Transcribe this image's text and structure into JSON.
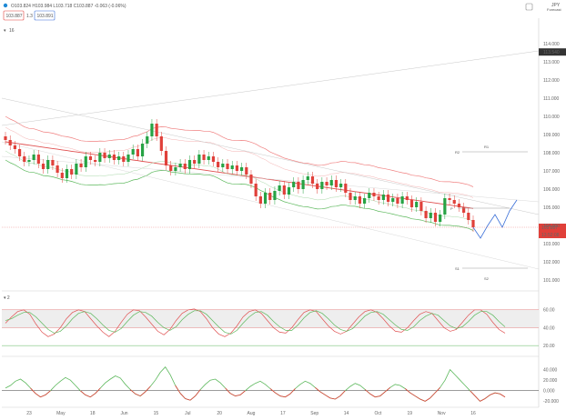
{
  "header": {
    "ohlc": "O103.824 H103.984 L103.718 C103.887 -0.063 (-0.06%)",
    "bid": "103.887",
    "spread": "1.3",
    "ask": "103.891",
    "period": "16",
    "symbol": "JPY",
    "symbol_sub": "Forecast"
  },
  "colors": {
    "bull": "#26a344",
    "bear": "#e0403a",
    "upper_band": "#f08080",
    "lower_band": "#5cb85c",
    "ma": "#e05050",
    "forecast": "#3a6fd8",
    "stoch_k": "#e05050",
    "stoch_d": "#5cb85c",
    "osc": "#5cb85c"
  },
  "chart_data": [
    {
      "type": "candlestick",
      "panel": "price",
      "ylim": [
        100.5,
        115
      ],
      "y_ticks": [
        "114.000",
        "113.000",
        "112.000",
        "111.000",
        "110.000",
        "109.000",
        "108.000",
        "107.000",
        "106.000",
        "105.000",
        "104.000",
        "103.000",
        "102.000",
        "101.000"
      ],
      "x_ticks": [
        "23",
        "May",
        "18",
        "Jun",
        "15",
        "Jul",
        "20",
        "Aug",
        "17",
        "Sep",
        "14",
        "Oct",
        "19",
        "Nov",
        "16"
      ],
      "last_price_label": "103.887",
      "countdown_label": "13:52:08",
      "top_price_label": "113.540",
      "pivot_labels": [
        "R2",
        "R1",
        "P",
        "S1",
        "S2"
      ],
      "pivots": {
        "R2": 108.05,
        "R1": 108.35,
        "P": 104.95,
        "S1": 101.65,
        "S2": 101.1
      },
      "candles_close": [
        108.7,
        108.4,
        108.2,
        107.8,
        107.5,
        107.6,
        107.9,
        107.4,
        107.1,
        107.6,
        107.3,
        106.9,
        106.6,
        107.1,
        106.8,
        107.4,
        107.2,
        107.8,
        107.6,
        107.5,
        108.0,
        107.7,
        107.9,
        107.6,
        107.8,
        107.5,
        107.9,
        108.2,
        107.8,
        108.5,
        108.9,
        109.6,
        108.9,
        108.1,
        107.3,
        107.0,
        107.2,
        107.4,
        107.1,
        107.6,
        107.4,
        107.9,
        107.6,
        107.8,
        107.5,
        107.2,
        107.4,
        107.1,
        107.3,
        107.0,
        107.2,
        106.8,
        106.3,
        105.6,
        105.2,
        105.8,
        105.4,
        105.9,
        106.2,
        105.7,
        106.1,
        106.4,
        106.0,
        106.5,
        106.7,
        106.3,
        106.0,
        106.4,
        106.2,
        106.5,
        106.1,
        106.3,
        105.8,
        105.4,
        105.6,
        105.2,
        105.5,
        105.8,
        105.6,
        105.4,
        105.7,
        105.3,
        105.5,
        105.2,
        105.6,
        105.4,
        105.0,
        105.3,
        104.8,
        104.4,
        104.7,
        104.2,
        104.6,
        105.5,
        105.4,
        105.2,
        105.0,
        104.7,
        104.3,
        103.9
      ],
      "forecast_path": [
        103.9,
        103.3,
        104.0,
        104.6,
        103.9,
        104.8,
        105.4
      ]
    },
    {
      "type": "line",
      "panel": "stochastic",
      "title": "2",
      "ylim": [
        10,
        75
      ],
      "y_ticks": [
        "60.00",
        "40.00",
        "20.00"
      ],
      "levels": [
        60,
        40,
        20
      ],
      "series": [
        {
          "values": [
            45,
            52,
            58,
            60,
            55,
            44,
            35,
            30,
            33,
            40,
            50,
            57,
            60,
            58,
            50,
            42,
            35,
            30,
            36,
            46,
            55,
            60,
            59,
            52,
            44,
            36,
            32,
            38,
            48,
            56,
            60,
            61,
            58,
            50,
            40,
            33,
            30,
            34,
            42,
            52,
            58,
            60,
            56,
            48,
            40,
            35,
            34,
            40,
            49,
            57,
            60,
            58,
            50,
            42,
            36,
            33,
            36,
            44,
            52,
            58,
            60,
            57,
            50,
            42,
            36,
            35,
            40,
            48,
            55,
            58,
            56,
            48,
            40,
            36,
            38,
            46,
            54,
            60,
            60,
            55,
            46,
            38,
            34
          ]
        },
        {
          "values": [
            48,
            50,
            54,
            57,
            57,
            52,
            45,
            38,
            34,
            36,
            42,
            50,
            56,
            58,
            56,
            50,
            43,
            37,
            35,
            39,
            47,
            54,
            58,
            57,
            53,
            46,
            40,
            37,
            41,
            49,
            55,
            59,
            59,
            55,
            48,
            41,
            35,
            33,
            37,
            45,
            52,
            57,
            58,
            54,
            47,
            41,
            37,
            37,
            43,
            51,
            57,
            59,
            56,
            50,
            43,
            38,
            36,
            39,
            46,
            53,
            57,
            58,
            55,
            49,
            43,
            38,
            37,
            41,
            48,
            53,
            56,
            54,
            48,
            42,
            39,
            41,
            47,
            54,
            58,
            58,
            54,
            47,
            41
          ]
        }
      ]
    },
    {
      "type": "line",
      "panel": "oscillator",
      "ylim": [
        -28,
        60
      ],
      "y_ticks": [
        "40.000",
        "20.000",
        "0.000",
        "-20.000"
      ],
      "series": [
        {
          "values": [
            5,
            10,
            18,
            22,
            15,
            5,
            -5,
            -12,
            -8,
            0,
            10,
            18,
            25,
            20,
            10,
            0,
            -8,
            -12,
            -5,
            5,
            15,
            22,
            28,
            24,
            12,
            2,
            -6,
            -10,
            -2,
            8,
            20,
            35,
            45,
            30,
            10,
            -5,
            -15,
            -18,
            -10,
            2,
            12,
            20,
            22,
            15,
            5,
            -5,
            -10,
            -8,
            0,
            8,
            14,
            18,
            12,
            4,
            -4,
            -10,
            -12,
            -6,
            4,
            12,
            18,
            14,
            6,
            -2,
            -8,
            -14,
            -16,
            -10,
            0,
            8,
            14,
            10,
            2,
            -6,
            -12,
            -10,
            -2,
            6,
            12,
            10,
            4,
            -4,
            -10,
            -16,
            -20,
            -14,
            -4,
            6,
            20,
            40,
            30,
            20,
            10,
            0,
            -10,
            -20,
            -15,
            -8,
            -4,
            -6,
            -12
          ]
        }
      ]
    }
  ]
}
